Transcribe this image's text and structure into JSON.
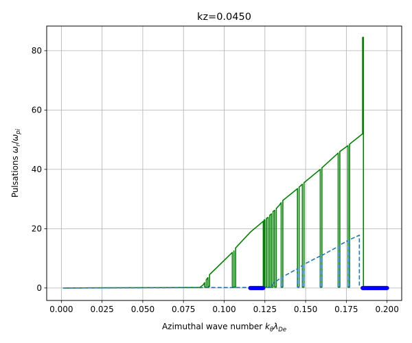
{
  "chart_data": {
    "type": "line",
    "title": "kz=0.0450",
    "xlabel": {
      "prefix": "Azimuthal wave number ",
      "sym": "k",
      "sub1": "θ",
      "sym2": "λ",
      "sub2": "De"
    },
    "ylabel": {
      "prefix": "Pulsations ",
      "sym": "ω",
      "sub1": "r",
      "mid": "/",
      "sym2": "ω",
      "sub2": "pi"
    },
    "xlim": [
      -0.009,
      0.209
    ],
    "ylim": [
      -4.2,
      88.3
    ],
    "xticks": [
      0.0,
      0.025,
      0.05,
      0.075,
      0.1,
      0.125,
      0.15,
      0.175,
      0.2
    ],
    "xtick_labels": [
      "0.000",
      "0.025",
      "0.050",
      "0.075",
      "0.100",
      "0.125",
      "0.150",
      "0.175",
      "0.200"
    ],
    "yticks": [
      0,
      20,
      40,
      60,
      80
    ],
    "ytick_labels": [
      "0",
      "20",
      "40",
      "60",
      "80"
    ],
    "grid": true,
    "colors": {
      "solid": "#008000",
      "dashed": "#1f77b4",
      "markers": "#0000ff"
    },
    "series": [
      {
        "style": "solid",
        "points": [
          [
            0.001,
            0.0
          ],
          [
            0.085,
            0.2
          ],
          [
            0.087,
            1.0
          ],
          [
            0.088,
            1.8
          ],
          [
            0.088,
            0.3
          ],
          [
            0.089,
            0.3
          ],
          [
            0.089,
            2.8
          ],
          [
            0.09,
            3.5
          ],
          [
            0.09,
            0.5
          ],
          [
            0.091,
            0.5
          ],
          [
            0.091,
            4.5
          ],
          [
            0.105,
            12.0
          ],
          [
            0.105,
            0.3
          ],
          [
            0.106,
            0.3
          ],
          [
            0.106,
            12.5
          ],
          [
            0.106,
            0.3
          ],
          [
            0.107,
            0.3
          ],
          [
            0.107,
            13.5
          ],
          [
            0.116,
            18.8
          ],
          [
            0.124,
            22.5
          ],
          [
            0.124,
            0.3
          ],
          [
            0.1245,
            0.3
          ],
          [
            0.1245,
            23.0
          ],
          [
            0.125,
            23.0
          ],
          [
            0.125,
            0.3
          ],
          [
            0.126,
            0.3
          ],
          [
            0.126,
            23.5
          ],
          [
            0.127,
            23.8
          ],
          [
            0.127,
            0.3
          ],
          [
            0.128,
            0.3
          ],
          [
            0.128,
            24.5
          ],
          [
            0.129,
            25.0
          ],
          [
            0.129,
            0.3
          ],
          [
            0.13,
            0.3
          ],
          [
            0.13,
            25.8
          ],
          [
            0.131,
            26.2
          ],
          [
            0.131,
            0.3
          ],
          [
            0.132,
            0.3
          ],
          [
            0.132,
            26.8
          ],
          [
            0.134,
            28.0
          ],
          [
            0.135,
            28.8
          ],
          [
            0.135,
            0.3
          ],
          [
            0.136,
            0.3
          ],
          [
            0.136,
            29.5
          ],
          [
            0.145,
            33.5
          ],
          [
            0.145,
            0.3
          ],
          [
            0.146,
            0.3
          ],
          [
            0.146,
            34.0
          ],
          [
            0.148,
            35.0
          ],
          [
            0.148,
            0.3
          ],
          [
            0.149,
            0.3
          ],
          [
            0.149,
            35.5
          ],
          [
            0.159,
            40.0
          ],
          [
            0.159,
            0.3
          ],
          [
            0.16,
            0.3
          ],
          [
            0.16,
            40.5
          ],
          [
            0.17,
            45.5
          ],
          [
            0.17,
            0.3
          ],
          [
            0.171,
            0.3
          ],
          [
            0.171,
            46.0
          ],
          [
            0.176,
            48.0
          ],
          [
            0.176,
            0.3
          ],
          [
            0.177,
            0.3
          ],
          [
            0.177,
            48.5
          ],
          [
            0.185,
            52.0
          ],
          [
            0.185,
            84.5
          ],
          [
            0.1855,
            84.5
          ],
          [
            0.1855,
            0.3
          ]
        ]
      },
      {
        "style": "dashed",
        "points": [
          [
            0.001,
            0.0
          ],
          [
            0.129,
            0.2
          ],
          [
            0.13,
            1.5
          ],
          [
            0.135,
            3.5
          ],
          [
            0.135,
            0.3
          ],
          [
            0.136,
            0.3
          ],
          [
            0.136,
            3.8
          ],
          [
            0.145,
            6.5
          ],
          [
            0.145,
            0.3
          ],
          [
            0.146,
            0.3
          ],
          [
            0.146,
            7.0
          ],
          [
            0.148,
            7.5
          ],
          [
            0.148,
            0.3
          ],
          [
            0.149,
            0.3
          ],
          [
            0.149,
            8.0
          ],
          [
            0.159,
            10.8
          ],
          [
            0.159,
            0.3
          ],
          [
            0.16,
            0.3
          ],
          [
            0.16,
            11.0
          ],
          [
            0.17,
            14.0
          ],
          [
            0.17,
            0.3
          ],
          [
            0.171,
            0.3
          ],
          [
            0.171,
            14.5
          ],
          [
            0.176,
            16.0
          ],
          [
            0.176,
            0.3
          ],
          [
            0.177,
            0.3
          ],
          [
            0.177,
            16.3
          ],
          [
            0.183,
            17.8
          ],
          [
            0.183,
            0.3
          ]
        ]
      }
    ],
    "marker_ranges": [
      {
        "x_start": 0.116,
        "x_end": 0.124,
        "y": 0
      },
      {
        "x_start": 0.185,
        "x_end": 0.2,
        "y": 0
      }
    ]
  }
}
